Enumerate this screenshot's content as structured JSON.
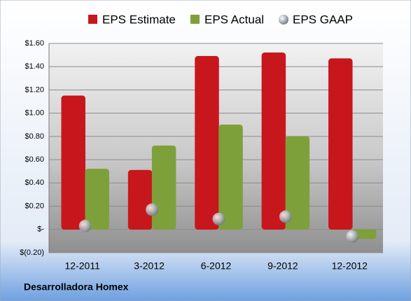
{
  "chart_data": {
    "type": "bar",
    "footer": "Desarrolladora Homex",
    "categories": [
      "12-2011",
      "3-2012",
      "6-2012",
      "9-2012",
      "12-2012"
    ],
    "series": [
      {
        "name": "EPS Estimate",
        "color": "#c8161d",
        "values": [
          1.15,
          0.51,
          1.49,
          1.52,
          1.47
        ]
      },
      {
        "name": "EPS Actual",
        "color": "#7ea03a",
        "values": [
          0.52,
          0.72,
          0.9,
          0.8,
          -0.08
        ]
      },
      {
        "name": "EPS GAAP",
        "color": "#a9b0b8",
        "values": [
          0.03,
          0.17,
          0.09,
          0.11,
          -0.06
        ]
      }
    ],
    "ylim": [
      -0.2,
      1.6
    ],
    "yticks": [
      {
        "value": 1.6,
        "label": "$1.60"
      },
      {
        "value": 1.4,
        "label": "$1.40"
      },
      {
        "value": 1.2,
        "label": "$1.20"
      },
      {
        "value": 1.0,
        "label": "$1.00"
      },
      {
        "value": 0.8,
        "label": "$0.80"
      },
      {
        "value": 0.6,
        "label": "$0.60"
      },
      {
        "value": 0.4,
        "label": "$0.40"
      },
      {
        "value": 0.2,
        "label": "$0.20"
      },
      {
        "value": 0,
        "label": "$-"
      },
      {
        "value": -0.2,
        "label": "$(0.20)"
      }
    ],
    "grid": true
  }
}
